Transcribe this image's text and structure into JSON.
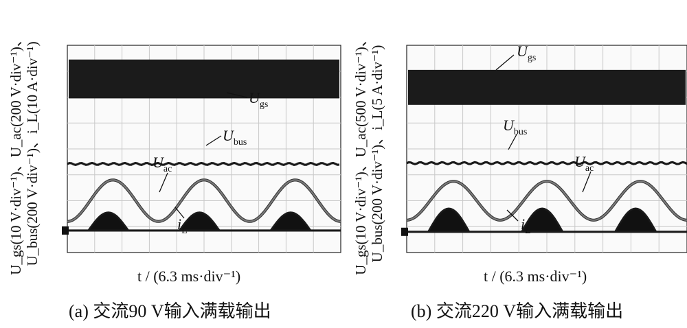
{
  "chart_data": [
    {
      "type": "line",
      "panel": "a",
      "caption": "(a)  交流90 V输入满载输出",
      "caption_label": "(a)",
      "caption_text": "交流90 V输入满载输出",
      "xlabel": "t / (6.3 ms·div⁻¹)",
      "ylabel_line1": "U_gs(10 V·div⁻¹)、U_ac(200 V·div⁻¹)、",
      "ylabel_line2": "U_bus(200 V·div⁻¹)、i_L(10 A·div⁻¹)",
      "grid": true,
      "x_divisions": 10,
      "y_divisions": 8,
      "series": [
        {
          "name": "U_gs",
          "label": "U",
          "sub": "gs",
          "kind": "pwm-band",
          "top_div": 0.55,
          "bottom_div": 2.05
        },
        {
          "name": "U_bus",
          "label": "U",
          "sub": "bus",
          "kind": "dc",
          "level_div": 4.58
        },
        {
          "name": "U_ac",
          "label": "U",
          "sub": "ac",
          "kind": "sine",
          "center_div": 6.0,
          "amplitude_div": 0.8,
          "cycles": 3,
          "phase_start_div": 0.5
        },
        {
          "name": "i_L",
          "label": "i",
          "sub": "L",
          "kind": "pulses",
          "base_div": 7.15,
          "peak_div": 6.45,
          "cycles": 3
        }
      ]
    },
    {
      "type": "line",
      "panel": "b",
      "caption": "(b)  交流220 V输入满载输出",
      "caption_label": "(b)",
      "caption_text": "交流220 V输入满载输出",
      "xlabel": "t / (6.3 ms·div⁻¹)",
      "ylabel_line1": "U_gs(10 V·div⁻¹)、U_ac(500 V·div⁻¹)、",
      "ylabel_line2": "U_bus(200 V·div⁻¹)、i_L(5 A·div⁻¹)",
      "grid": true,
      "x_divisions": 10,
      "y_divisions": 8,
      "series": [
        {
          "name": "U_gs",
          "label": "U",
          "sub": "gs",
          "kind": "pwm-band",
          "top_div": 0.95,
          "bottom_div": 2.3
        },
        {
          "name": "U_bus",
          "label": "U",
          "sub": "bus",
          "kind": "dc",
          "level_div": 4.55
        },
        {
          "name": "U_ac",
          "label": "U",
          "sub": "ac",
          "kind": "sine",
          "center_div": 6.0,
          "amplitude_div": 0.75,
          "cycles": 3,
          "phase_start_div": 0.8
        },
        {
          "name": "i_L",
          "label": "i",
          "sub": "L",
          "kind": "pulses",
          "base_div": 7.2,
          "peak_div": 6.3,
          "cycles": 3
        }
      ]
    }
  ],
  "labels": {
    "a": {
      "ylabel1_parts": [
        [
          "U",
          "gs",
          "(10 V·div"
        ],
        [
          "",
          "",
          "⁻¹)、U"
        ],
        [
          "",
          "ac",
          "(200 V·div⁻¹)、"
        ]
      ],
      "t_italic": "t",
      "t_rest": " / (6.3 ms·div",
      "t_exp": "−1",
      "t_close": ")"
    },
    "b": {
      "t_italic": "t",
      "t_rest": " / (6.3 ms·div",
      "t_exp": "−1",
      "t_close": ")"
    }
  },
  "colors": {
    "trace": "#1a1a1a",
    "sine": "#7a7a7a",
    "grid": "#c8c8c8",
    "frame": "#222222",
    "panel_bg": "#fafafa"
  }
}
